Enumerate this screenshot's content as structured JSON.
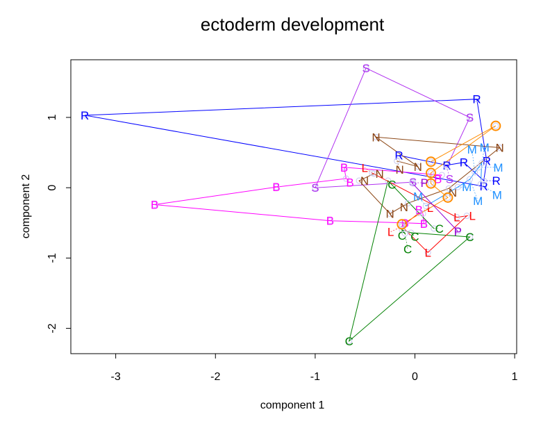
{
  "chart_data": {
    "type": "scatter",
    "title": "ectoderm development",
    "xlabel": "component 1",
    "ylabel": "component 2",
    "xlim": [
      -3.45,
      1.02
    ],
    "ylim": [
      -2.36,
      1.82
    ],
    "xticks": [
      -3,
      -2,
      -1,
      0,
      1
    ],
    "yticks": [
      -2,
      -1,
      0,
      1
    ],
    "grid": false,
    "series": [
      {
        "name": "R",
        "color": "#0000FF",
        "points": [
          [
            0.69,
            0.02
          ],
          [
            -3.31,
            1.03
          ],
          [
            0.62,
            1.26
          ],
          [
            0.72,
            0.38
          ],
          [
            0.69,
            0.1
          ],
          [
            0.49,
            0.36
          ],
          [
            0.32,
            0.32
          ],
          [
            -0.16,
            0.46
          ]
        ]
      },
      {
        "name": "S",
        "color": "#B030F0",
        "points": [
          [
            -0.02,
            0.08
          ],
          [
            -1.0,
            0.0
          ],
          [
            -0.49,
            1.7
          ],
          [
            0.55,
            1.0
          ],
          [
            0.32,
            0.3
          ]
        ]
      },
      {
        "name": "B",
        "color": "#FF00FF",
        "points": [
          [
            0.27,
            0.18
          ],
          [
            -0.71,
            0.29
          ],
          [
            -0.69,
            0.13
          ],
          [
            -1.39,
            0.01
          ],
          [
            -2.61,
            -0.24
          ],
          [
            -0.85,
            -0.47
          ],
          [
            -0.1,
            -0.5
          ],
          [
            0.09,
            -0.51
          ],
          [
            0.08,
            -0.37
          ]
        ]
      },
      {
        "name": "N",
        "color": "#8B4513",
        "points": [
          [
            -0.18,
            0.38
          ],
          [
            0.03,
            0.3
          ],
          [
            -0.39,
            0.72
          ],
          [
            0.85,
            0.57
          ],
          [
            0.34,
            -0.01
          ],
          [
            -0.07,
            -0.22
          ],
          [
            -0.25,
            -0.37
          ],
          [
            -0.56,
            0.1
          ],
          [
            -0.41,
            0.2
          ]
        ]
      },
      {
        "name": "C",
        "color": "#008000",
        "points": [
          [
            0.19,
            -0.58
          ],
          [
            -0.27,
            0.1
          ],
          [
            -0.66,
            -2.18
          ],
          [
            0.55,
            -0.7
          ],
          [
            -0.04,
            -0.64
          ],
          [
            -0.13,
            -0.6
          ],
          [
            -0.1,
            -0.65
          ]
        ]
      },
      {
        "name": "L",
        "color": "#FF0000",
        "points": [
          [
            -0.43,
            0.21
          ],
          [
            0.42,
            -0.42
          ],
          [
            0.52,
            -0.4
          ],
          [
            0.13,
            -0.92
          ],
          [
            -0.13,
            -0.55
          ],
          [
            0.04,
            -0.36
          ]
        ]
      },
      {
        "name": "O",
        "color": "#FF8C00",
        "points": [
          [
            0.16,
            0.37
          ],
          [
            0.81,
            0.88
          ],
          [
            0.16,
            0.21
          ],
          [
            0.16,
            0.06
          ],
          [
            0.33,
            -0.14
          ],
          [
            -0.13,
            -0.52
          ]
        ]
      },
      {
        "name": "M",
        "color": "#1E90FF",
        "points": [
          [
            0.11,
            -0.26
          ],
          [
            0.43,
            0.01
          ],
          [
            0.55,
            0.12
          ],
          [
            0.64,
            0.29
          ],
          [
            0.6,
            0.22
          ],
          [
            0.67,
            0.35
          ],
          [
            0.66,
            0.05
          ]
        ]
      },
      {
        "name": "P",
        "color": "#9400D3",
        "points": [
          [
            -0.03,
            0.07
          ],
          [
            0.43,
            -0.62
          ]
        ]
      }
    ]
  }
}
